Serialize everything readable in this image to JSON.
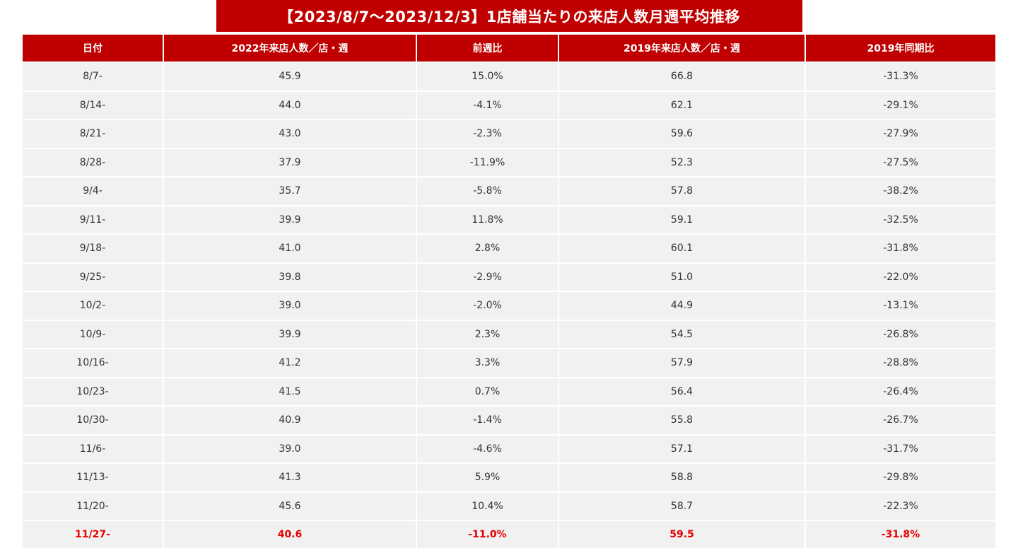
{
  "title": "【2023/8/7～2023/12/3】1店舗当たりの来店人数月週平均推移",
  "columns": [
    "日付",
    "2022年来店人数／店・週",
    "前週比",
    "2019年来店人数／店・週",
    "2019年同期比"
  ],
  "rows": [
    [
      "8/7-",
      "45.9",
      "15.0%",
      "66.8",
      "-31.3%"
    ],
    [
      "8/14-",
      "44.0",
      "-4.1%",
      "62.1",
      "-29.1%"
    ],
    [
      "8/21-",
      "43.0",
      "-2.3%",
      "59.6",
      "-27.9%"
    ],
    [
      "8/28-",
      "37.9",
      "-11.9%",
      "52.3",
      "-27.5%"
    ],
    [
      "9/4-",
      "35.7",
      "-5.8%",
      "57.8",
      "-38.2%"
    ],
    [
      "9/11-",
      "39.9",
      "11.8%",
      "59.1",
      "-32.5%"
    ],
    [
      "9/18-",
      "41.0",
      "2.8%",
      "60.1",
      "-31.8%"
    ],
    [
      "9/25-",
      "39.8",
      "-2.9%",
      "51.0",
      "-22.0%"
    ],
    [
      "10/2-",
      "39.0",
      "-2.0%",
      "44.9",
      "-13.1%"
    ],
    [
      "10/9-",
      "39.9",
      "2.3%",
      "54.5",
      "-26.8%"
    ],
    [
      "10/16-",
      "41.2",
      "3.3%",
      "57.9",
      "-28.8%"
    ],
    [
      "10/23-",
      "41.5",
      "0.7%",
      "56.4",
      "-26.4%"
    ],
    [
      "10/30-",
      "40.9",
      "-1.4%",
      "55.8",
      "-26.7%"
    ],
    [
      "11/6-",
      "39.0",
      "-4.6%",
      "57.1",
      "-31.7%"
    ],
    [
      "11/13-",
      "41.3",
      "5.9%",
      "58.8",
      "-29.8%"
    ],
    [
      "11/20-",
      "45.6",
      "10.4%",
      "58.7",
      "-22.3%"
    ],
    [
      "11/27-",
      "40.6",
      "-11.0%",
      "59.5",
      "-31.8%"
    ]
  ],
  "highlight_row_index": 16,
  "colors": {
    "header_bg": "#c00000",
    "header_text": "#ffffff",
    "row_bg": "#f1f1f1",
    "row_text": "#333333",
    "highlight_text": "#e60000"
  }
}
